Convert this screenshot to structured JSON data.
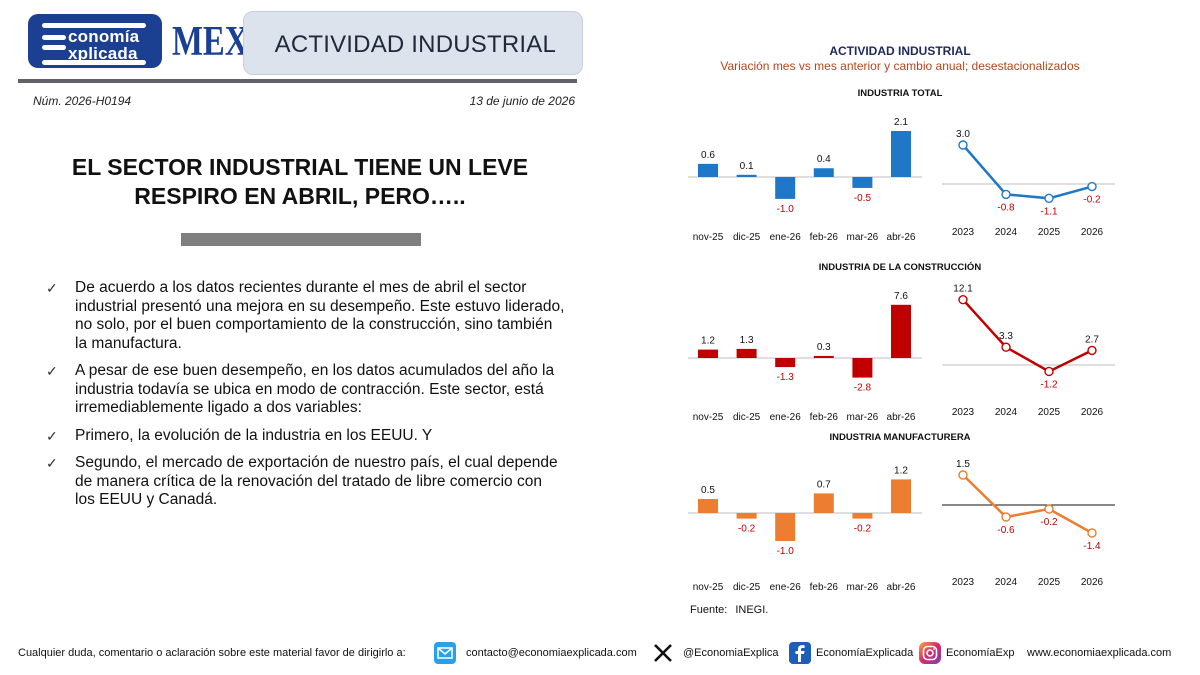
{
  "header": {
    "logo_line1": "conomía",
    "logo_line2": "xplicada",
    "logo_country": "MEX",
    "section_title": "ACTIVIDAD INDUSTRIAL",
    "doc_number": "Núm. 2026-H0194",
    "date": "13 de junio de 2026"
  },
  "headline": {
    "line1": "EL SECTOR INDUSTRIAL TIENE UN LEVE",
    "line2": "RESPIRO EN ABRIL, PERO….."
  },
  "bullets": [
    "De acuerdo a los datos recientes durante el mes de abril el sector industrial presentó una mejora en su desempeño. Este estuvo liderado, no solo, por el buen comportamiento de la construcción, sino también la manufactura.",
    "A pesar de ese buen desempeño, en los datos acumulados del año la industria todavía se ubica en modo de contracción. Este sector, está irremediablemente ligado a dos variables:",
    "Primero, la evolución de la industria en los EEUU. Y",
    "Segundo, el mercado de exportación de nuestro país, el cual depende de manera crítica de la renovación del tratado de libre comercio con los EEUU y Canadá."
  ],
  "chart_header": {
    "title": "ACTIVIDAD INDUSTRIAL",
    "subtitle": "Variación mes vs mes anterior y cambio anual; desestacionalizados"
  },
  "chart_data": [
    {
      "title": "INDUSTRIA TOTAL",
      "color": "#1f77c8",
      "monthly": {
        "type": "bar",
        "categories": [
          "nov-25",
          "dic-25",
          "ene-26",
          "feb-26",
          "mar-26",
          "abr-26"
        ],
        "values": [
          0.6,
          0.1,
          -1.0,
          0.4,
          -0.5,
          2.1
        ]
      },
      "annual": {
        "type": "line",
        "categories": [
          "2023",
          "2024",
          "2025",
          "2026"
        ],
        "values": [
          3.0,
          -0.8,
          -1.1,
          -0.2
        ]
      }
    },
    {
      "title": "INDUSTRIA DE LA CONSTRUCCIÓN",
      "color": "#c00000",
      "monthly": {
        "type": "bar",
        "categories": [
          "nov-25",
          "dic-25",
          "ene-26",
          "feb-26",
          "mar-26",
          "abr-26"
        ],
        "values": [
          1.2,
          1.3,
          -1.3,
          0.3,
          -2.8,
          7.6
        ]
      },
      "annual": {
        "type": "line",
        "categories": [
          "2023",
          "2024",
          "2025",
          "2026"
        ],
        "values": [
          12.1,
          3.3,
          -1.2,
          2.7
        ]
      }
    },
    {
      "title": "INDUSTRIA MANUFACTURERA",
      "color": "#ed7d31",
      "monthly": {
        "type": "bar",
        "categories": [
          "nov-25",
          "dic-25",
          "ene-26",
          "feb-26",
          "mar-26",
          "abr-26"
        ],
        "values": [
          0.5,
          -0.2,
          -1.0,
          0.7,
          -0.2,
          1.2
        ]
      },
      "annual": {
        "type": "line",
        "categories": [
          "2023",
          "2024",
          "2025",
          "2026"
        ],
        "values": [
          1.5,
          -0.6,
          -0.2,
          -1.4
        ]
      }
    }
  ],
  "source": {
    "label": "Fuente:",
    "value": "INEGI."
  },
  "footer": {
    "contact_text": "Cualquier duda, comentario o aclaración sobre este material favor de dirigirlo a:",
    "email": "contacto@economiaexplicada.com",
    "x_handle": "@EconomiaExplica",
    "facebook": "EconomíaExplicada",
    "instagram": "EconomíaExp",
    "website": "www.economiaexplicada.com"
  }
}
